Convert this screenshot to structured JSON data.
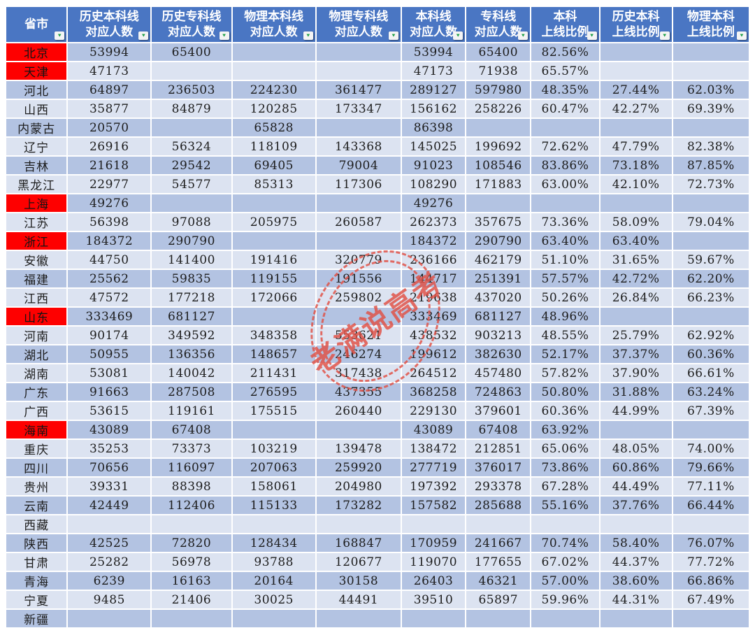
{
  "colors": {
    "header_bg": "#4a76c3",
    "band_dark": "#b3c3e2",
    "band_light": "#dce3f1",
    "highlight_red": "#fe0000",
    "stamp_red": "#e15044",
    "filter_arrow_green": "#1fa048"
  },
  "watermark": {
    "text": "老满说高考"
  },
  "table": {
    "columns": [
      {
        "label": "省市"
      },
      {
        "label": "历史本科线\n对应人数"
      },
      {
        "label": "历史专科线\n对应人数"
      },
      {
        "label": "物理本科线\n对应人数"
      },
      {
        "label": "物理专科线\n对应人数"
      },
      {
        "label": "本科线\n对应人数"
      },
      {
        "label": "专科线\n对应人数"
      },
      {
        "label": "本科\n上线比例"
      },
      {
        "label": "历史本科\n上线比例"
      },
      {
        "label": "物理本科\n上线比例"
      }
    ],
    "rows": [
      {
        "province": "北京",
        "red": true,
        "values": [
          "53994",
          "65400",
          "",
          "",
          "53994",
          "65400",
          "82.56%",
          "",
          ""
        ]
      },
      {
        "province": "天津",
        "red": true,
        "values": [
          "47173",
          "",
          "",
          "",
          "47173",
          "71938",
          "65.57%",
          "",
          ""
        ]
      },
      {
        "province": "河北",
        "red": false,
        "values": [
          "64897",
          "236503",
          "224230",
          "361477",
          "289127",
          "597980",
          "48.35%",
          "27.44%",
          "62.03%"
        ]
      },
      {
        "province": "山西",
        "red": false,
        "values": [
          "35877",
          "84879",
          "120285",
          "173347",
          "156162",
          "258226",
          "60.47%",
          "42.27%",
          "69.39%"
        ]
      },
      {
        "province": "内蒙古",
        "red": false,
        "values": [
          "20570",
          "",
          "65828",
          "",
          "86398",
          "",
          "",
          "",
          ""
        ]
      },
      {
        "province": "辽宁",
        "red": false,
        "values": [
          "26916",
          "56324",
          "118109",
          "143368",
          "145025",
          "199692",
          "72.62%",
          "47.79%",
          "82.38%"
        ]
      },
      {
        "province": "吉林",
        "red": false,
        "values": [
          "21618",
          "29542",
          "69405",
          "79004",
          "91023",
          "108546",
          "83.86%",
          "73.18%",
          "87.85%"
        ]
      },
      {
        "province": "黑龙江",
        "red": false,
        "values": [
          "22977",
          "54577",
          "85313",
          "117306",
          "108290",
          "171883",
          "63.00%",
          "42.10%",
          "72.73%"
        ]
      },
      {
        "province": "上海",
        "red": true,
        "values": [
          "49276",
          "",
          "",
          "",
          "49276",
          "",
          "",
          "",
          ""
        ]
      },
      {
        "province": "江苏",
        "red": false,
        "values": [
          "56398",
          "97088",
          "205975",
          "260587",
          "262373",
          "357675",
          "73.36%",
          "58.09%",
          "79.04%"
        ]
      },
      {
        "province": "浙江",
        "red": true,
        "values": [
          "184372",
          "290790",
          "",
          "",
          "184372",
          "290790",
          "63.40%",
          "63.40%",
          ""
        ]
      },
      {
        "province": "安徽",
        "red": false,
        "values": [
          "44750",
          "141400",
          "191416",
          "320779",
          "236166",
          "462179",
          "51.10%",
          "31.65%",
          "59.67%"
        ]
      },
      {
        "province": "福建",
        "red": false,
        "values": [
          "25562",
          "59835",
          "119155",
          "191556",
          "144717",
          "251391",
          "57.57%",
          "42.72%",
          "62.20%"
        ]
      },
      {
        "province": "江西",
        "red": false,
        "values": [
          "47572",
          "177218",
          "172066",
          "259802",
          "219638",
          "437020",
          "50.26%",
          "26.84%",
          "66.23%"
        ]
      },
      {
        "province": "山东",
        "red": true,
        "values": [
          "333469",
          "681127",
          "",
          "",
          "333469",
          "681127",
          "48.96%",
          "",
          ""
        ]
      },
      {
        "province": "河南",
        "red": false,
        "values": [
          "90174",
          "349592",
          "348358",
          "553621",
          "438532",
          "903213",
          "48.55%",
          "25.79%",
          "62.92%"
        ]
      },
      {
        "province": "湖北",
        "red": false,
        "values": [
          "50955",
          "136356",
          "148657",
          "246274",
          "199612",
          "382630",
          "52.17%",
          "37.37%",
          "60.36%"
        ]
      },
      {
        "province": "湖南",
        "red": false,
        "values": [
          "53081",
          "140042",
          "211431",
          "317438",
          "264512",
          "457480",
          "57.82%",
          "37.90%",
          "66.61%"
        ]
      },
      {
        "province": "广东",
        "red": false,
        "values": [
          "91663",
          "287508",
          "276595",
          "437355",
          "368258",
          "724863",
          "50.80%",
          "31.88%",
          "63.24%"
        ]
      },
      {
        "province": "广西",
        "red": false,
        "values": [
          "53615",
          "119161",
          "175515",
          "260440",
          "229130",
          "379601",
          "60.36%",
          "44.99%",
          "67.39%"
        ]
      },
      {
        "province": "海南",
        "red": true,
        "values": [
          "43089",
          "67408",
          "",
          "",
          "43089",
          "67408",
          "63.92%",
          "",
          ""
        ]
      },
      {
        "province": "重庆",
        "red": false,
        "values": [
          "35253",
          "73373",
          "103219",
          "139478",
          "138472",
          "212851",
          "65.06%",
          "48.05%",
          "74.00%"
        ]
      },
      {
        "province": "四川",
        "red": false,
        "values": [
          "70656",
          "116097",
          "207063",
          "259920",
          "277719",
          "376017",
          "73.86%",
          "60.86%",
          "79.66%"
        ]
      },
      {
        "province": "贵州",
        "red": false,
        "values": [
          "39331",
          "88398",
          "158061",
          "204980",
          "197392",
          "293378",
          "67.28%",
          "44.49%",
          "77.11%"
        ]
      },
      {
        "province": "云南",
        "red": false,
        "values": [
          "42449",
          "112406",
          "115133",
          "173282",
          "157582",
          "285688",
          "55.16%",
          "37.76%",
          "66.44%"
        ]
      },
      {
        "province": "西藏",
        "red": false,
        "values": [
          "",
          "",
          "",
          "",
          "",
          "",
          "",
          "",
          ""
        ]
      },
      {
        "province": "陕西",
        "red": false,
        "values": [
          "42525",
          "72820",
          "128434",
          "168847",
          "170959",
          "241667",
          "70.74%",
          "58.40%",
          "76.07%"
        ]
      },
      {
        "province": "甘肃",
        "red": false,
        "values": [
          "25282",
          "56978",
          "93788",
          "120677",
          "119070",
          "177655",
          "67.02%",
          "44.37%",
          "77.72%"
        ]
      },
      {
        "province": "青海",
        "red": false,
        "values": [
          "6239",
          "16163",
          "20164",
          "30158",
          "26403",
          "46321",
          "57.00%",
          "38.60%",
          "66.86%"
        ]
      },
      {
        "province": "宁夏",
        "red": false,
        "values": [
          "9485",
          "21406",
          "30025",
          "44491",
          "39510",
          "65897",
          "59.96%",
          "44.31%",
          "67.49%"
        ]
      },
      {
        "province": "新疆",
        "red": false,
        "values": [
          "",
          "",
          "",
          "",
          "",
          "",
          "",
          "",
          ""
        ]
      }
    ]
  }
}
